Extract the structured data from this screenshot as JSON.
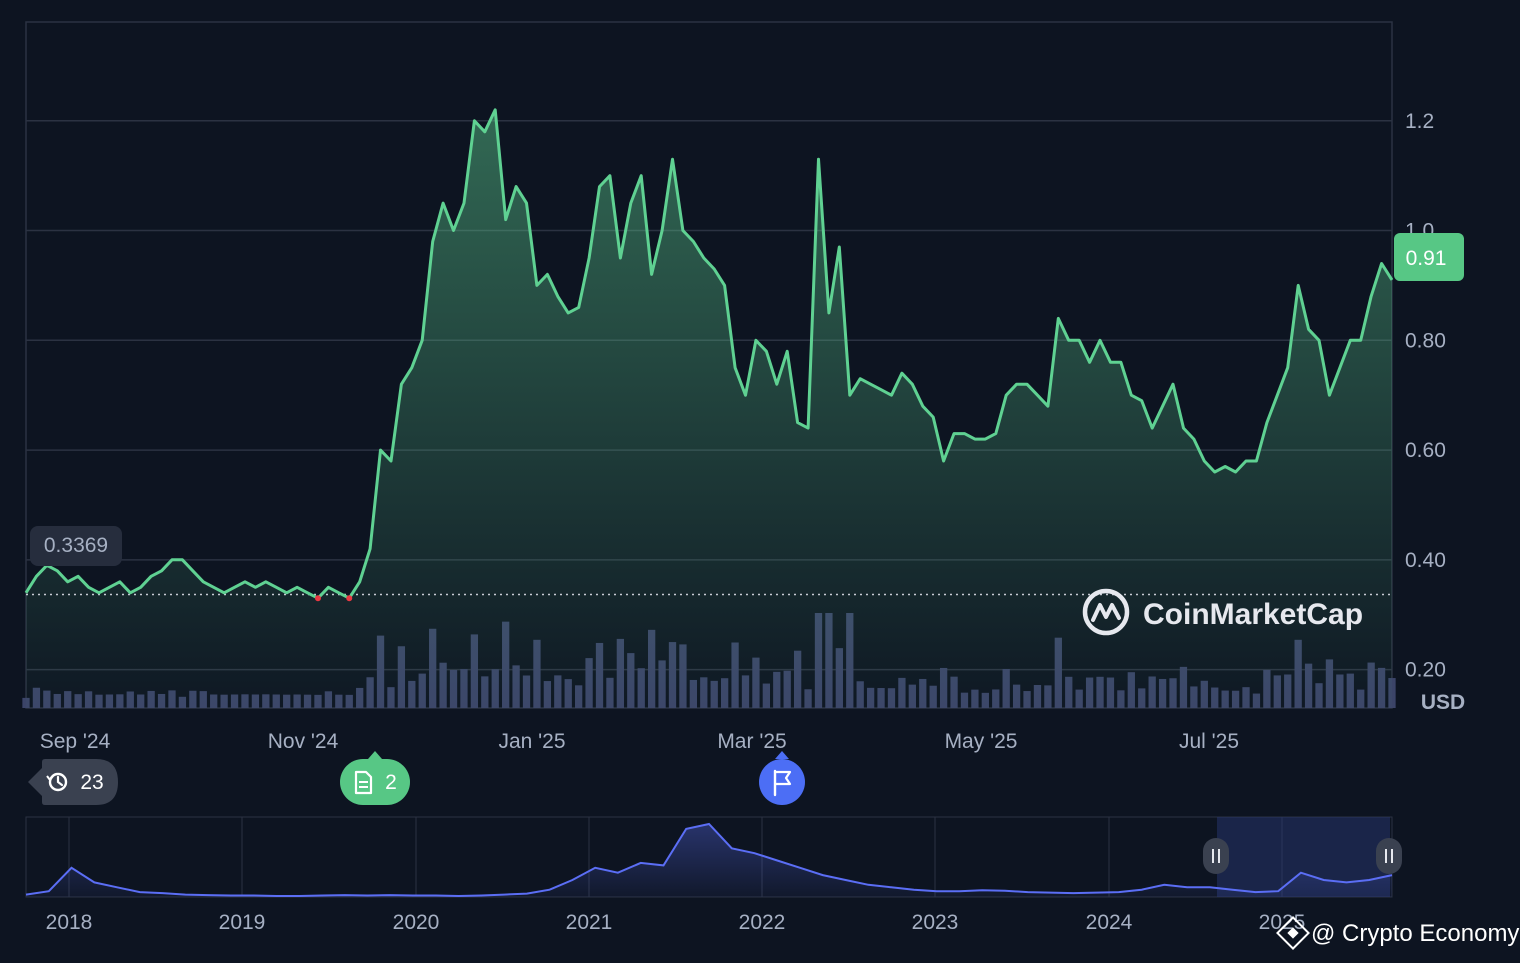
{
  "currency_label": "USD",
  "brand": {
    "name": "CoinMarketCap"
  },
  "watermark": {
    "text": "@ Crypto Economy"
  },
  "colors": {
    "background": "#0d1421",
    "line": "#5fd192",
    "line_below_baseline": "#ea3943",
    "volume": "#3b4468",
    "navigator_line": "#5b6ef5",
    "grid": "#2b3242",
    "current_price_badge": "#57c785",
    "event_news": "#57c785",
    "event_flag": "#4c6ef5"
  },
  "events": {
    "history": {
      "icon": "history-icon",
      "count": "23"
    },
    "news": {
      "icon": "document-icon",
      "count": "2"
    },
    "flag": {
      "icon": "flag-icon"
    }
  },
  "chart_data": [
    {
      "type": "line",
      "title": "",
      "xlabel": "",
      "ylabel": "",
      "unit": "USD",
      "ylim": [
        0.13,
        1.38
      ],
      "y_ticks": [
        "0.20",
        "0.40",
        "0.60",
        "0.80",
        "1.0",
        "1.2"
      ],
      "x_tick_labels": [
        "Sep '24",
        "Nov '24",
        "Jan '25",
        "Mar '25",
        "May '25",
        "Jul '25"
      ],
      "baseline": {
        "value": 0.3369,
        "label": "0.3369",
        "style": "dotted"
      },
      "current_price": {
        "value": 0.91,
        "label": "0.91"
      },
      "grid": true,
      "series": [
        {
          "values": [
            0.34,
            0.37,
            0.39,
            0.38,
            0.36,
            0.37,
            0.35,
            0.34,
            0.35,
            0.36,
            0.34,
            0.35,
            0.37,
            0.38,
            0.4,
            0.4,
            0.38,
            0.36,
            0.35,
            0.34,
            0.35,
            0.36,
            0.35,
            0.36,
            0.35,
            0.34,
            0.35,
            0.34,
            0.33,
            0.35,
            0.34,
            0.33,
            0.36,
            0.42,
            0.6,
            0.58,
            0.72,
            0.75,
            0.8,
            0.98,
            1.05,
            1.0,
            1.05,
            1.2,
            1.18,
            1.22,
            1.02,
            1.08,
            1.05,
            0.9,
            0.92,
            0.88,
            0.85,
            0.86,
            0.95,
            1.08,
            1.1,
            0.95,
            1.05,
            1.1,
            0.92,
            1.0,
            1.13,
            1.0,
            0.98,
            0.95,
            0.93,
            0.9,
            0.75,
            0.7,
            0.8,
            0.78,
            0.72,
            0.78,
            0.65,
            0.64,
            1.13,
            0.85,
            0.97,
            0.7,
            0.73,
            0.72,
            0.71,
            0.7,
            0.74,
            0.72,
            0.68,
            0.66,
            0.58,
            0.63,
            0.63,
            0.62,
            0.62,
            0.63,
            0.7,
            0.72,
            0.72,
            0.7,
            0.68,
            0.84,
            0.8,
            0.8,
            0.76,
            0.8,
            0.76,
            0.76,
            0.7,
            0.69,
            0.64,
            0.68,
            0.72,
            0.64,
            0.62,
            0.58,
            0.56,
            0.57,
            0.56,
            0.58,
            0.58,
            0.65,
            0.7,
            0.75,
            0.9,
            0.82,
            0.8,
            0.7,
            0.75,
            0.8,
            0.8,
            0.88,
            0.94,
            0.91
          ]
        }
      ]
    },
    {
      "type": "area",
      "title": "",
      "x_tick_labels": [
        "2018",
        "2019",
        "2020",
        "2021",
        "2022",
        "2023",
        "2024",
        "2025"
      ],
      "grid": true,
      "series": [
        {
          "values": [
            0.05,
            0.12,
            0.6,
            0.3,
            0.2,
            0.1,
            0.08,
            0.05,
            0.04,
            0.03,
            0.03,
            0.02,
            0.02,
            0.03,
            0.04,
            0.03,
            0.04,
            0.03,
            0.03,
            0.02,
            0.03,
            0.05,
            0.07,
            0.15,
            0.35,
            0.6,
            0.5,
            0.7,
            0.65,
            1.4,
            1.5,
            1.0,
            0.9,
            0.75,
            0.6,
            0.45,
            0.35,
            0.25,
            0.2,
            0.15,
            0.12,
            0.12,
            0.14,
            0.13,
            0.1,
            0.09,
            0.08,
            0.09,
            0.1,
            0.15,
            0.25,
            0.2,
            0.2,
            0.15,
            0.1,
            0.12,
            0.5,
            0.35,
            0.3,
            0.35,
            0.45
          ]
        }
      ]
    }
  ]
}
